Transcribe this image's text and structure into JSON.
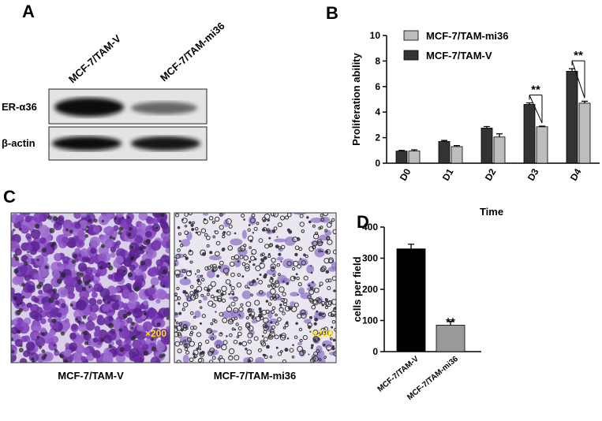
{
  "panel_labels": [
    "A",
    "B",
    "C",
    "D"
  ],
  "blot": {
    "lanes": [
      "MCF-7/TAM-V",
      "MCF-7/TAM-mi36"
    ],
    "rows": [
      "ER-α36",
      "β-actin"
    ]
  },
  "micrographs": [
    {
      "caption": "MCF-7/TAM-V",
      "magnification": "×200"
    },
    {
      "caption": "MCF-7/TAM-mi36",
      "magnification": "×200"
    }
  ],
  "chart_data": [
    {
      "type": "bar",
      "xlabel": "Time",
      "ylabel": "Proliferation ability",
      "categories": [
        "D0",
        "D1",
        "D2",
        "D3",
        "D4"
      ],
      "series": [
        {
          "name": "MCF-7/TAM-mi36",
          "color": "#bdbdbd",
          "values": [
            0.95,
            1.3,
            2.05,
            2.85,
            4.7
          ],
          "errors": [
            0.1,
            0.08,
            0.25,
            0.05,
            0.15
          ]
        },
        {
          "name": "MCF-7/TAM-V",
          "color": "#333333",
          "values": [
            0.95,
            1.7,
            2.75,
            4.6,
            7.2
          ],
          "errors": [
            0.05,
            0.08,
            0.12,
            0.12,
            0.2
          ]
        }
      ],
      "ylim": [
        0,
        10
      ],
      "yticks": [
        0,
        2,
        4,
        6,
        8,
        10
      ],
      "annotations": [
        {
          "text": "**",
          "x": "D3"
        },
        {
          "text": "**",
          "x": "D4"
        }
      ]
    },
    {
      "type": "bar",
      "ylabel": "cells per field",
      "categories": [
        "MCF-7/TAM-V",
        "MCF-7/TAM-mi36"
      ],
      "values": [
        330,
        85
      ],
      "errors": [
        15,
        12
      ],
      "colors": [
        "#000000",
        "#999999"
      ],
      "ylim": [
        0,
        400
      ],
      "yticks": [
        0,
        100,
        200,
        300,
        400
      ],
      "annotations": [
        {
          "text": "**",
          "x": "MCF-7/TAM-mi36"
        }
      ]
    }
  ]
}
